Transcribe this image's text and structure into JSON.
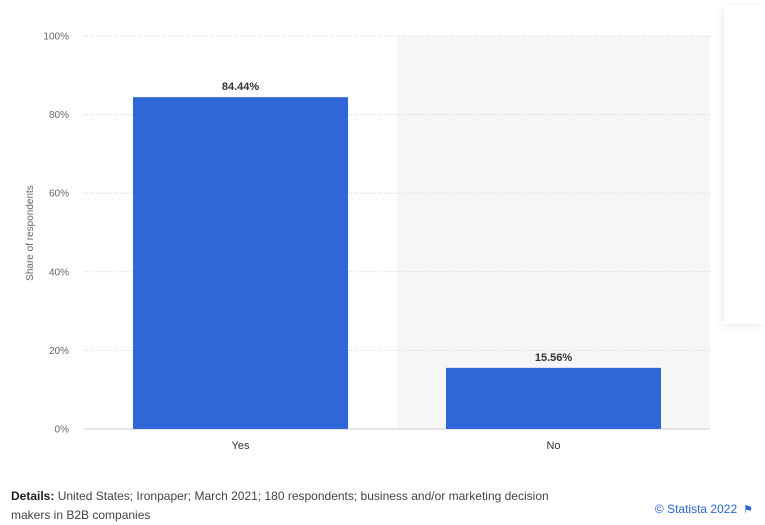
{
  "chart_data": {
    "type": "bar",
    "categories": [
      "Yes",
      "No"
    ],
    "values": [
      84.44,
      15.56
    ],
    "value_labels": [
      "84.44%",
      "15.56%"
    ],
    "ylabel": "Share of respondents",
    "ylim": [
      0,
      100
    ],
    "yticks": [
      0,
      20,
      40,
      60,
      80,
      100
    ],
    "ytick_labels": [
      "0%",
      "20%",
      "40%",
      "60%",
      "80%",
      "100%"
    ],
    "grid": true,
    "bar_color": "#2f67d8",
    "highlight_band_color": "#f6f6f6"
  },
  "footer": {
    "details_label": "Details:",
    "details_text": "United States; Ironpaper; March 2021; 180 respondents; business and/or marketing decision makers in B2B companies",
    "source": "© Statista 2022",
    "source_icon": "flag-icon"
  }
}
